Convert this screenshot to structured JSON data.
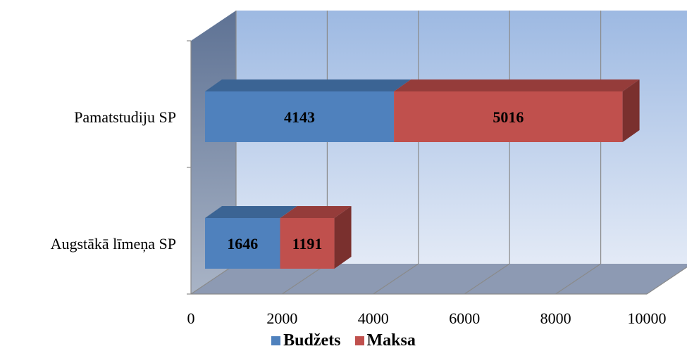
{
  "chart_data": {
    "type": "bar",
    "orientation": "horizontal",
    "stacked": true,
    "three_d": true,
    "categories": [
      "Pamatstudiju SP",
      "Augstākā līmeņa SP"
    ],
    "series": [
      {
        "name": "Budžets",
        "values": [
          4143,
          1646
        ],
        "color": "#4F81BD",
        "top_color": "#3B6494",
        "side_color": "#2F5279"
      },
      {
        "name": "Maksa",
        "values": [
          5016,
          1191
        ],
        "color": "#C0504D",
        "top_color": "#953C3A",
        "side_color": "#7A302E"
      }
    ],
    "xlim": [
      0,
      10000
    ],
    "x_ticks": [
      "0",
      "2000",
      "4000",
      "6000",
      "8000",
      "10000"
    ],
    "grid": true,
    "legend_position": "bottom",
    "background": {
      "back_wall_top": "#9DB9E2",
      "back_wall_bottom": "#E3EAF6",
      "floor": "#8D9AB3",
      "side_wall": "#7688A3"
    }
  }
}
